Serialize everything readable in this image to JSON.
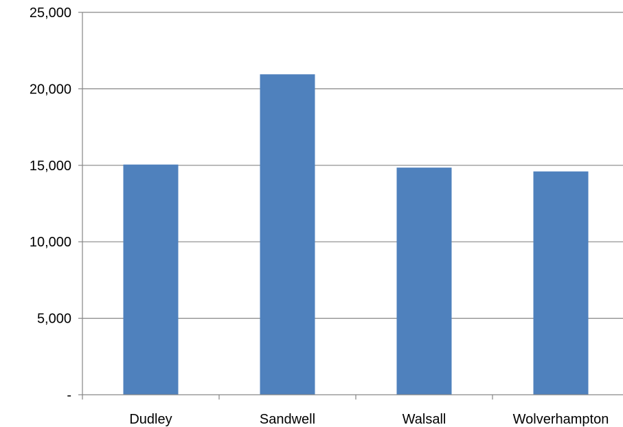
{
  "chart_data": {
    "type": "bar",
    "categories": [
      "Dudley",
      "Sandwell",
      "Walsall",
      "Wolverhampton"
    ],
    "values": [
      15050,
      20950,
      14850,
      14600
    ],
    "ylim": [
      0,
      25000
    ],
    "yticks": [
      0,
      5000,
      10000,
      15000,
      20000,
      25000
    ],
    "ytick_labels": [
      "-",
      "5,000",
      "10,000",
      "15,000",
      "20,000",
      "25,000"
    ],
    "grid": true,
    "legend": "none",
    "colors": {
      "bar": "#4f81bd",
      "grid": "#868686",
      "axis": "#868686"
    }
  }
}
